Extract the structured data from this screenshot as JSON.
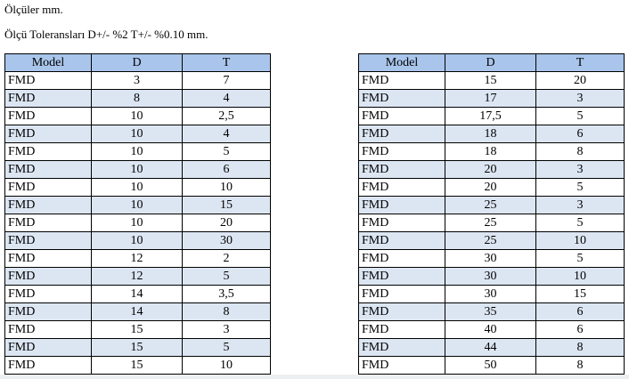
{
  "text": {
    "units": "Ölçüler mm.",
    "tolerance": "Ölçü Toleransları D+/- %2 T+/- %0.10 mm."
  },
  "headers": [
    "Model",
    "D",
    "T"
  ],
  "colors": {
    "header": "#a9c5eb",
    "alt_row": "#dce6f3"
  },
  "left_table": [
    [
      "FMD",
      "3",
      "7"
    ],
    [
      "FMD",
      "8",
      "4"
    ],
    [
      "FMD",
      "10",
      "2,5"
    ],
    [
      "FMD",
      "10",
      "4"
    ],
    [
      "FMD",
      "10",
      "5"
    ],
    [
      "FMD",
      "10",
      "6"
    ],
    [
      "FMD",
      "10",
      "10"
    ],
    [
      "FMD",
      "10",
      "15"
    ],
    [
      "FMD",
      "10",
      "20"
    ],
    [
      "FMD",
      "10",
      "30"
    ],
    [
      "FMD",
      "12",
      "2"
    ],
    [
      "FMD",
      "12",
      "5"
    ],
    [
      "FMD",
      "14",
      "3,5"
    ],
    [
      "FMD",
      "14",
      "8"
    ],
    [
      "FMD",
      "15",
      "3"
    ],
    [
      "FMD",
      "15",
      "5"
    ],
    [
      "FMD",
      "15",
      "10"
    ]
  ],
  "right_table": [
    [
      "FMD",
      "15",
      "20"
    ],
    [
      "FMD",
      "17",
      "3"
    ],
    [
      "FMD",
      "17,5",
      "5"
    ],
    [
      "FMD",
      "18",
      "6"
    ],
    [
      "FMD",
      "18",
      "8"
    ],
    [
      "FMD",
      "20",
      "3"
    ],
    [
      "FMD",
      "20",
      "5"
    ],
    [
      "FMD",
      "25",
      "3"
    ],
    [
      "FMD",
      "25",
      "5"
    ],
    [
      "FMD",
      "25",
      "10"
    ],
    [
      "FMD",
      "30",
      "5"
    ],
    [
      "FMD",
      "30",
      "10"
    ],
    [
      "FMD",
      "30",
      "15"
    ],
    [
      "FMD",
      "35",
      "6"
    ],
    [
      "FMD",
      "40",
      "6"
    ],
    [
      "FMD",
      "44",
      "8"
    ],
    [
      "FMD",
      "50",
      "8"
    ]
  ]
}
